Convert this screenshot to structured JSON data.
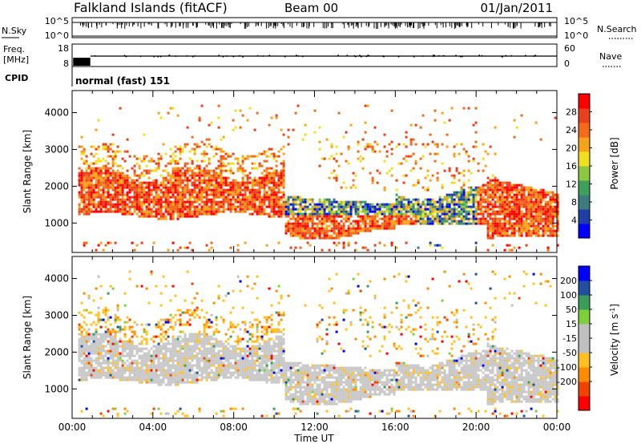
{
  "header": {
    "station": "Falkland Islands (fitACF)",
    "beam": "Beam 00",
    "date": "01/Jan/2011"
  },
  "top_panels": {
    "nsky_label": "N.Sky",
    "nsky_ticks": [
      "10^5",
      "10^0"
    ],
    "nsearch_label": "N.Search",
    "nsearch_ticks": [
      "10^5",
      "10^0"
    ],
    "freq_label_1": "Freq.",
    "freq_label_2": "[MHz]",
    "freq_ticks": [
      "18",
      "8"
    ],
    "nave_label": "Nave",
    "nave_ticks": [
      "60",
      "0"
    ],
    "cpid_label": "CPID",
    "cpid_text": "normal (fast) 151"
  },
  "colors": {
    "power": [
      "#0000ff",
      "#1e3fa8",
      "#3c7c7c",
      "#3ea05a",
      "#8dc63f",
      "#f0e020",
      "#f7a21b",
      "#f26a1a",
      "#e8401c",
      "#ff0000"
    ],
    "velocity": [
      "#ff0000",
      "#ee4400",
      "#ff8c00",
      "#ffc020",
      "#c0c0c0",
      "#c0c0c0",
      "#7fcf3c",
      "#3a9e5a",
      "#1f4f9e",
      "#0000ff"
    ]
  },
  "chart_data": [
    {
      "type": "heatmap",
      "ylabel": "Slant Range [km]",
      "y_ticks": [
        1000,
        2000,
        3000,
        4000
      ],
      "ylim": [
        200,
        4600
      ],
      "xlim": [
        0,
        24
      ],
      "x_ticks": [
        "00:00",
        "04:00",
        "08:00",
        "12:00",
        "16:00",
        "20:00",
        "00:00"
      ],
      "colorbar": {
        "label": "Power [dB]",
        "ticks": [
          "4",
          "8",
          "12",
          "16",
          "20",
          "24",
          "28"
        ],
        "range": [
          0,
          32
        ]
      },
      "echo_bands": [
        {
          "hours": [
            0.5,
            10.5
          ],
          "range_km": [
            1100,
            2400
          ],
          "level": "24-32 dB"
        },
        {
          "hours": [
            10.5,
            17
          ],
          "range_km": [
            600,
            1700
          ],
          "level": "20-28 dB"
        },
        {
          "hours": [
            13,
            21.5
          ],
          "range_km": [
            1100,
            2000
          ],
          "level": "8-16 dB"
        },
        {
          "hours": [
            20,
            24
          ],
          "range_km": [
            600,
            2200
          ],
          "level": "24-32 dB"
        }
      ]
    },
    {
      "type": "heatmap",
      "ylabel": "Slant Range [km]",
      "y_ticks": [
        1000,
        2000,
        3000,
        4000
      ],
      "ylim": [
        200,
        4600
      ],
      "xlim": [
        0,
        24
      ],
      "x_ticks": [
        "00:00",
        "04:00",
        "08:00",
        "12:00",
        "16:00",
        "20:00",
        "00:00"
      ],
      "xlabel": "Time UT",
      "colorbar": {
        "label": "Velocity [m s^-1]",
        "ticks": [
          "200",
          "100",
          "50",
          "15",
          "-15",
          "-50",
          "-100",
          "-200"
        ],
        "range": [
          -250,
          250
        ]
      },
      "echo_bands": [
        {
          "hours": [
            0.5,
            24
          ],
          "range_km": [
            600,
            2400
          ],
          "level": "-15 to 15 m/s (ground scatter)"
        }
      ]
    }
  ]
}
